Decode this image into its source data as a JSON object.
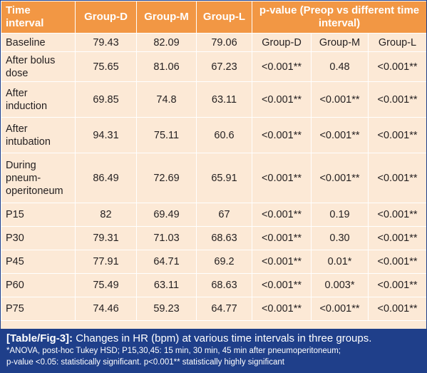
{
  "table": {
    "headers": {
      "time_interval": "Time interval",
      "group_d": "Group-D",
      "group_m": "Group-M",
      "group_l": "Group-L",
      "pvalue": "p-value (Preop vs different time interval)"
    },
    "rows": [
      {
        "label": "Baseline",
        "d": "79.43",
        "m": "82.09",
        "l": "79.06",
        "pd": "Group-D",
        "pm": "Group-M",
        "pl": "Group-L"
      },
      {
        "label": "After bolus dose",
        "d": "75.65",
        "m": "81.06",
        "l": "67.23",
        "pd": "<0.001**",
        "pm": "0.48",
        "pl": "<0.001**"
      },
      {
        "label": "After induction",
        "d": "69.85",
        "m": "74.8",
        "l": "63.11",
        "pd": "<0.001**",
        "pm": "<0.001**",
        "pl": "<0.001**"
      },
      {
        "label": "After intubation",
        "d": "94.31",
        "m": "75.11",
        "l": "60.6",
        "pd": "<0.001**",
        "pm": "<0.001**",
        "pl": "<0.001**"
      },
      {
        "label": "During pneum-operitoneum",
        "d": "86.49",
        "m": "72.69",
        "l": "65.91",
        "pd": "<0.001**",
        "pm": "<0.001**",
        "pl": "<0.001**"
      },
      {
        "label": "P15",
        "d": "82",
        "m": "69.49",
        "l": "67",
        "pd": "<0.001**",
        "pm": "0.19",
        "pl": "<0.001**"
      },
      {
        "label": "P30",
        "d": "79.31",
        "m": "71.03",
        "l": "68.63",
        "pd": "<0.001**",
        "pm": "0.30",
        "pl": "<0.001**"
      },
      {
        "label": "P45",
        "d": "77.91",
        "m": "64.71",
        "l": "69.2",
        "pd": "<0.001**",
        "pm": "0.01*",
        "pl": "<0.001**"
      },
      {
        "label": "P60",
        "d": "75.49",
        "m": "63.11",
        "l": "68.63",
        "pd": "<0.001**",
        "pm": "0.003*",
        "pl": "<0.001**"
      },
      {
        "label": "P75",
        "d": "74.46",
        "m": "59.23",
        "l": "64.77",
        "pd": "<0.001**",
        "pm": "<0.001**",
        "pl": "<0.001**"
      }
    ]
  },
  "caption": {
    "tag": "[Table/Fig-3]:",
    "title": "Changes in HR (bpm) at various time intervals in three groups.",
    "note1": "*ANOVA, post-hoc Tukey HSD; P15,30,45: 15 min, 30 min, 45 min after pneumoperitoneum;",
    "note2": "p-value <0.05: statistically significant. p<0.001** statistically highly significant"
  },
  "colors": {
    "header_bg": "#f29744",
    "body_bg": "#fce9d6",
    "caption_bg": "#1f3f8a",
    "border": "#ffffff"
  }
}
